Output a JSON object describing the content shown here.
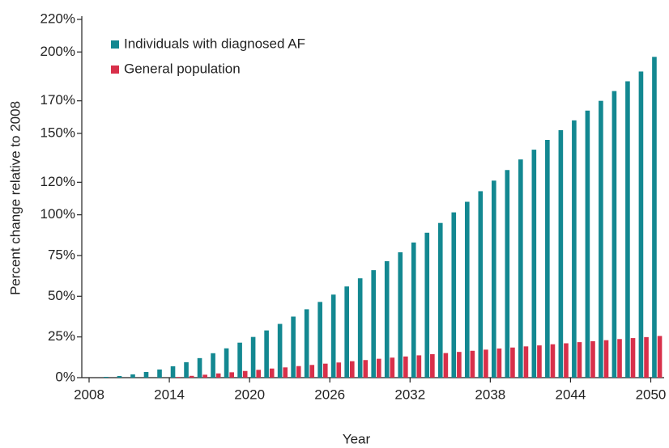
{
  "chart_data": {
    "type": "bar",
    "x_label": "Year",
    "y_label": "Percent change relative to 2008",
    "x": [
      2009,
      2010,
      2011,
      2012,
      2013,
      2014,
      2015,
      2016,
      2017,
      2018,
      2019,
      2020,
      2021,
      2022,
      2023,
      2024,
      2025,
      2026,
      2027,
      2028,
      2029,
      2030,
      2031,
      2032,
      2033,
      2034,
      2035,
      2036,
      2037,
      2038,
      2039,
      2040,
      2041,
      2042,
      2043,
      2044,
      2045,
      2046,
      2047,
      2048,
      2049,
      2050
    ],
    "series": [
      {
        "name": "Individuals with diagnosed AF",
        "color": "#138891",
        "values": [
          0.5,
          1,
          2,
          3.5,
          5,
          7,
          9.5,
          12,
          15,
          18,
          21.5,
          25,
          29,
          33,
          37.5,
          42,
          46.5,
          51,
          56,
          61,
          66,
          71.5,
          77,
          83,
          89,
          95,
          101.5,
          108,
          114.5,
          121,
          127.5,
          134,
          140,
          146,
          152,
          158,
          164,
          170,
          176,
          182,
          188,
          197
        ]
      },
      {
        "name": "General population",
        "color": "#d8304a",
        "values": [
          0,
          0,
          0,
          0,
          0,
          0.4,
          1.1,
          1.8,
          2.6,
          3.3,
          4.1,
          4.8,
          5.6,
          6.3,
          7.1,
          7.8,
          8.6,
          9.3,
          10.1,
          10.8,
          11.6,
          12.3,
          13.0,
          13.7,
          14.4,
          15.1,
          15.8,
          16.5,
          17.2,
          17.9,
          18.5,
          19.2,
          19.8,
          20.5,
          21.1,
          21.8,
          22.4,
          23.0,
          23.7,
          24.3,
          24.9,
          25.6
        ]
      }
    ],
    "xlim": [
      2008,
      2051
    ],
    "xticks": [
      2008,
      2014,
      2020,
      2026,
      2032,
      2038,
      2044,
      2050
    ],
    "ylim": [
      0,
      220
    ],
    "yticks": [
      {
        "value": 0,
        "label": "0%"
      },
      {
        "value": 25,
        "label": "25%"
      },
      {
        "value": 50,
        "label": "50%"
      },
      {
        "value": 75,
        "label": "75%"
      },
      {
        "value": 100,
        "label": "100%"
      },
      {
        "value": 120,
        "label": "120%"
      },
      {
        "value": 150,
        "label": "150%"
      },
      {
        "value": 170,
        "label": "170%"
      },
      {
        "value": 200,
        "label": "200%"
      },
      {
        "value": 220,
        "label": "220%"
      }
    ],
    "legend": "upper left",
    "grid": false
  }
}
